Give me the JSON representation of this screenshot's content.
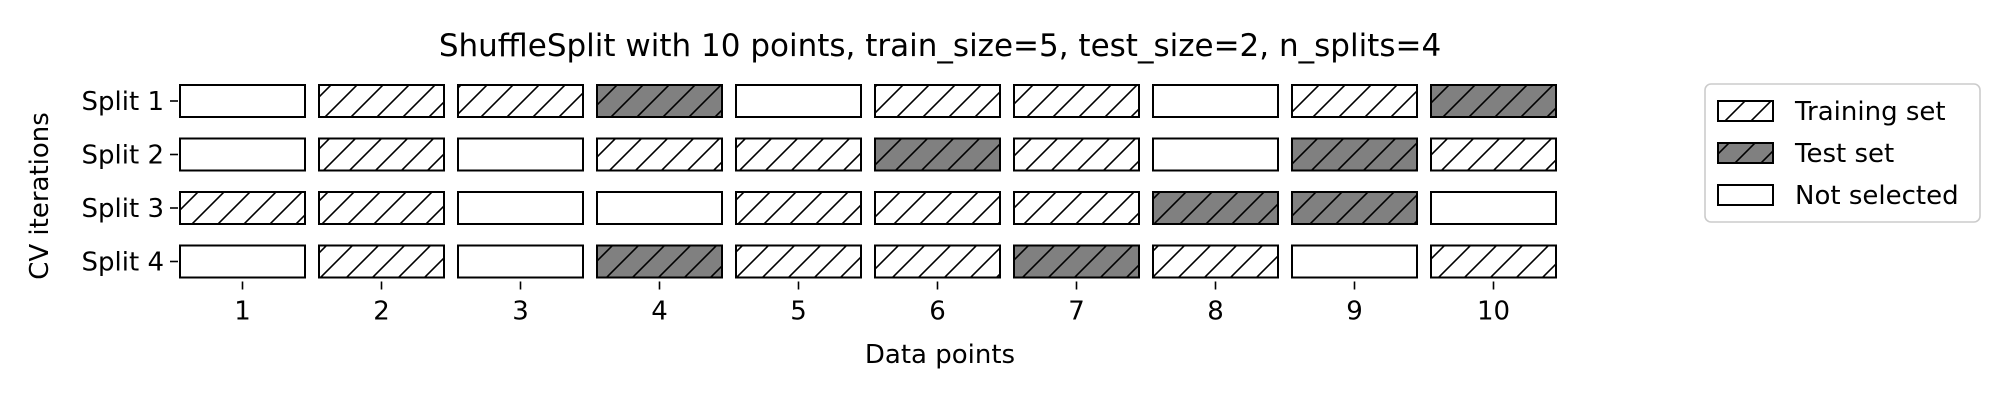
{
  "chart_data": {
    "type": "table",
    "title": "ShuffleSplit with 10 points, train_size=5, test_size=2, n_splits=4",
    "xlabel": "Data points",
    "ylabel": "CV iterations",
    "x_ticks": [
      "1",
      "2",
      "3",
      "4",
      "5",
      "6",
      "7",
      "8",
      "9",
      "10"
    ],
    "y_ticks": [
      "Split 1",
      "Split 2",
      "Split 3",
      "Split 4"
    ],
    "legend_position": "right",
    "legend": [
      {
        "key": "train",
        "label": "Training set"
      },
      {
        "key": "test",
        "label": "Test set"
      },
      {
        "key": "none",
        "label": "Not selected"
      }
    ],
    "grid": false,
    "colors": {
      "test_fill": "#808080",
      "frame": "#000000",
      "legend_border": "#cccccc"
    },
    "splits": [
      [
        "none",
        "train",
        "train",
        "test",
        "none",
        "train",
        "train",
        "none",
        "train",
        "test"
      ],
      [
        "none",
        "train",
        "none",
        "train",
        "train",
        "test",
        "train",
        "none",
        "test",
        "train"
      ],
      [
        "train",
        "train",
        "none",
        "none",
        "train",
        "train",
        "train",
        "test",
        "test",
        "none"
      ],
      [
        "none",
        "train",
        "none",
        "test",
        "train",
        "train",
        "test",
        "train",
        "none",
        "train"
      ]
    ]
  }
}
